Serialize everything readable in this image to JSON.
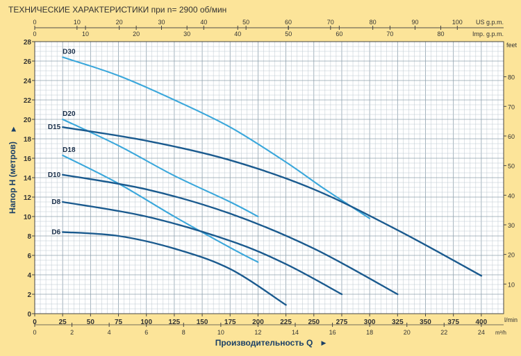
{
  "title": "ТЕХНИЧЕСКИЕ ХАРАКТЕРИСТИКИ при n= 2900 об/мин",
  "colors": {
    "background": "#FCE499",
    "plot_background": "#FFFFFF",
    "grid_minor": "#BCC7CF",
    "grid_major": "#8FA1AE",
    "axis_text": "#333333",
    "dark_curve": "#1A5A8E",
    "light_curve": "#3AA7DB"
  },
  "chart_data": {
    "type": "line",
    "title": "ТЕХНИЧЕСКИЕ ХАРАКТЕРИСТИКИ при n= 2900 об/мин",
    "xlabel": "Производительность Q",
    "ylabel": "Напор H  (метров)",
    "x_unit": "l/min",
    "xlim": [
      0,
      420
    ],
    "ylim": [
      0,
      28
    ],
    "grid": true,
    "x_ticks": [
      "0",
      "25",
      "50",
      "75",
      "100",
      "125",
      "150",
      "175",
      "200",
      "225",
      "250",
      "275",
      "300",
      "325",
      "350",
      "375",
      "400"
    ],
    "y_ticks": [
      "0",
      "2",
      "4",
      "6",
      "8",
      "10",
      "12",
      "14",
      "16",
      "18",
      "20",
      "22",
      "24",
      "26",
      "28"
    ],
    "top_axis_us": {
      "unit": "US g.p.m.",
      "ticks": [
        "0",
        "10",
        "20",
        "30",
        "40",
        "50",
        "60",
        "70",
        "80",
        "90",
        "100"
      ],
      "lpm_per_unit": 3.785
    },
    "top_axis_imp": {
      "unit": "Imp. g.p.m.",
      "ticks": [
        "0",
        "10",
        "20",
        "30",
        "40",
        "50",
        "60",
        "70",
        "80"
      ],
      "lpm_per_unit": 4.546
    },
    "bottom_axis_m3h": {
      "unit": "m³/h",
      "ticks": [
        "0",
        "2",
        "4",
        "6",
        "8",
        "10",
        "12",
        "14",
        "16",
        "18",
        "20",
        "22",
        "24"
      ],
      "lpm_per_unit": 16.667
    },
    "right_axis_feet": {
      "unit": "feet",
      "ticks": [
        "10",
        "20",
        "30",
        "40",
        "50",
        "60",
        "70",
        "80"
      ],
      "m_per_unit": 0.3048
    },
    "series": [
      {
        "name": "D30",
        "shade": "light",
        "x": [
          25,
          75,
          125,
          175,
          225,
          260,
          300
        ],
        "y": [
          26.4,
          24.5,
          22.0,
          19.2,
          15.6,
          12.8,
          9.8
        ]
      },
      {
        "name": "D20",
        "shade": "light",
        "x": [
          25,
          75,
          125,
          175,
          200
        ],
        "y": [
          20.0,
          17.3,
          14.2,
          11.5,
          10.0
        ]
      },
      {
        "name": "D15",
        "shade": "dark",
        "x": [
          25,
          100,
          175,
          250,
          325,
          400
        ],
        "y": [
          19.2,
          17.8,
          15.8,
          12.8,
          8.6,
          3.9
        ]
      },
      {
        "name": "D18",
        "shade": "light",
        "x": [
          25,
          75,
          125,
          175,
          200
        ],
        "y": [
          16.3,
          13.4,
          10.0,
          6.8,
          5.3
        ]
      },
      {
        "name": "D10",
        "shade": "dark",
        "x": [
          25,
          100,
          175,
          250,
          325
        ],
        "y": [
          14.3,
          12.8,
          10.3,
          6.7,
          2.0
        ]
      },
      {
        "name": "D8",
        "shade": "dark",
        "x": [
          25,
          100,
          175,
          225,
          275
        ],
        "y": [
          11.5,
          10.0,
          7.5,
          5.1,
          2.0
        ]
      },
      {
        "name": "D6",
        "shade": "dark",
        "x": [
          25,
          75,
          125,
          175,
          225
        ],
        "y": [
          8.4,
          8.0,
          6.7,
          4.6,
          0.9
        ]
      }
    ]
  }
}
